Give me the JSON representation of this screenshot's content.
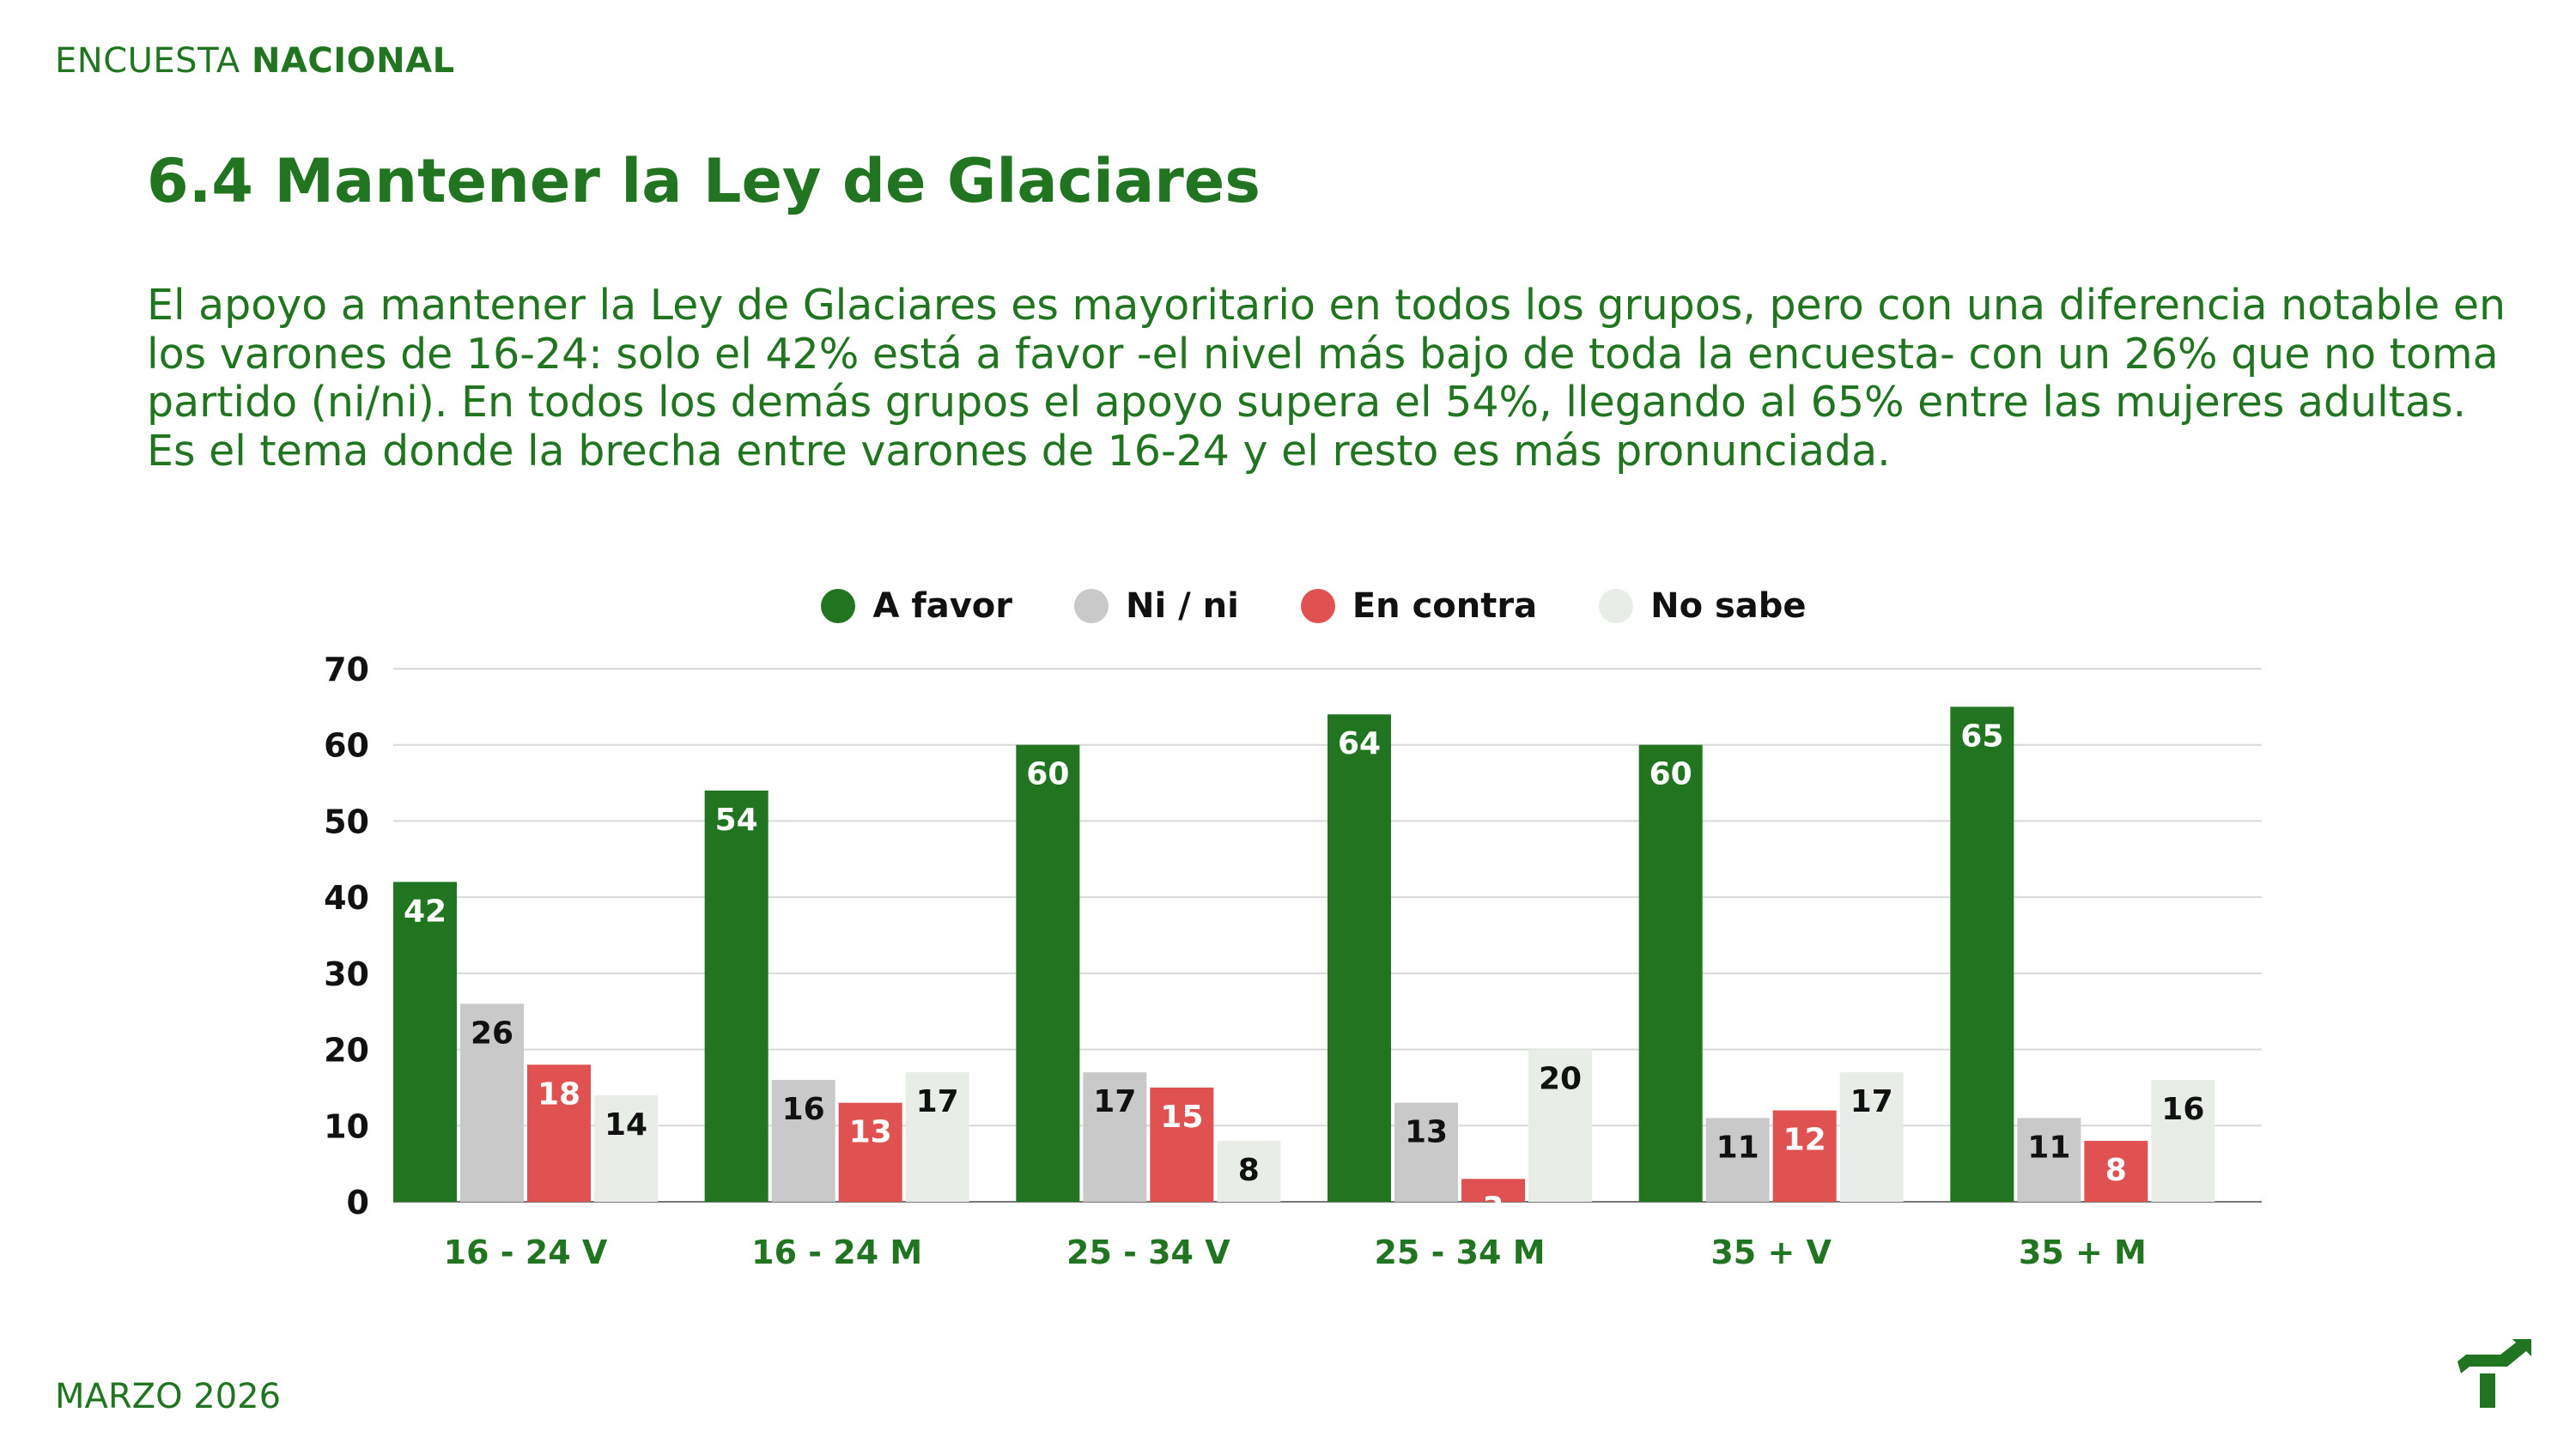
{
  "header": {
    "kicker_light": "ENCUESTA",
    "kicker_bold": "NACIONAL"
  },
  "title": "6.4 Mantener la Ley de Glaciares",
  "description": "El apoyo a mantener la Ley de Glaciares es mayoritario en todos los grupos, pero con una diferencia notable en los varones de 16-24: solo el 42% está a favor -el nivel más bajo de toda la encuesta- con un 26% que no toma partido (ni/ni). En todos los demás grupos el apoyo supera el 54%, llegando al 65% entre las mujeres adultas. Es el tema donde la brecha entre varones de 16-24 y el resto es más pronunciada.",
  "footer": {
    "date": "MARZO 2026"
  },
  "logo_icon": "arrow-t-logo-icon",
  "colors": {
    "brand": "#217520",
    "a_favor": "#217520",
    "ni_ni": "#c9c9c9",
    "en_contra": "#e05252",
    "no_sabe": "#e8ede8"
  },
  "chart_data": {
    "type": "bar",
    "title": "",
    "xlabel": "",
    "ylabel": "",
    "ylim": [
      0,
      70
    ],
    "yticks": [
      "0",
      "10",
      "20",
      "30",
      "40",
      "50",
      "60",
      "70"
    ],
    "grid": true,
    "legend_position": "top-center",
    "categories": [
      "16 - 24 V",
      "16 - 24 M",
      "25 - 34 V",
      "25 - 34 M",
      "35 + V",
      "35 + M"
    ],
    "series": [
      {
        "name": "A favor",
        "color": "#217520",
        "label_color": "#ffffff",
        "values": [
          42,
          54,
          60,
          64,
          60,
          65
        ]
      },
      {
        "name": "Ni / ni",
        "color": "#c9c9c9",
        "label_color": "#111111",
        "values": [
          26,
          16,
          17,
          13,
          11,
          11
        ]
      },
      {
        "name": "En contra",
        "color": "#e05252",
        "label_color": "#ffffff",
        "values": [
          18,
          13,
          15,
          3,
          12,
          8
        ]
      },
      {
        "name": "No sabe",
        "color": "#e8ede8",
        "label_color": "#111111",
        "values": [
          14,
          17,
          8,
          20,
          17,
          16
        ]
      }
    ]
  }
}
